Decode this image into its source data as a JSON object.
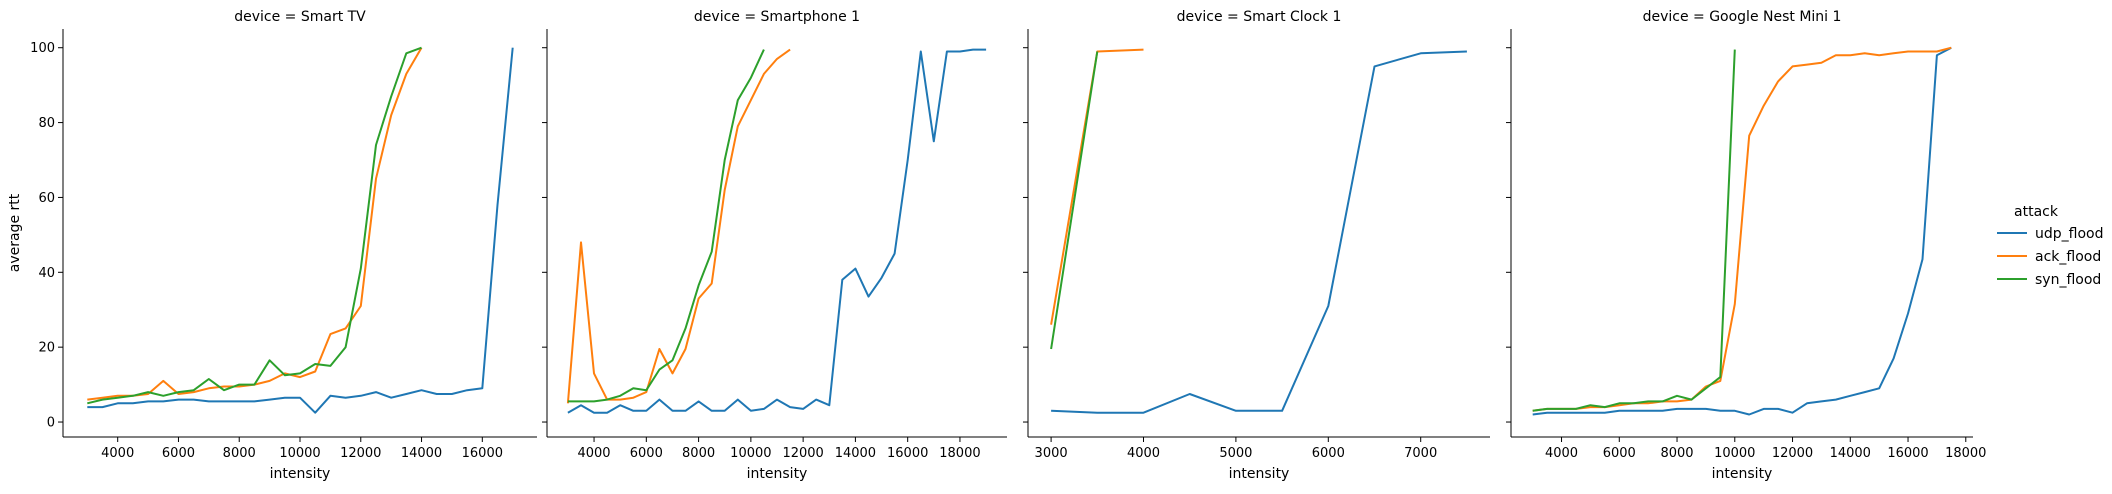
{
  "chart_data": {
    "type": "line",
    "ylabel": "average rtt",
    "xlabel": "intensity",
    "ylim": [
      -4,
      105
    ],
    "yticks": [
      0,
      20,
      40,
      60,
      80,
      100
    ],
    "legend": {
      "title": "attack",
      "placement": "right",
      "entries": [
        "udp_flood",
        "ack_flood",
        "syn_flood"
      ]
    },
    "colors": {
      "udp_flood": "#1f77b4",
      "ack_flood": "#ff7f0e",
      "syn_flood": "#2ca02c"
    },
    "panels": [
      {
        "title": "device = Smart TV",
        "xlim": [
          2200,
          17800
        ],
        "xticks": [
          4000,
          6000,
          8000,
          10000,
          12000,
          14000,
          16000
        ],
        "series": [
          {
            "name": "udp_flood",
            "x": [
              3000,
              3500,
              4000,
              4500,
              5000,
              5500,
              6000,
              6500,
              7000,
              7500,
              8000,
              8500,
              9000,
              9500,
              10000,
              10500,
              11000,
              11500,
              12000,
              12500,
              13000,
              13500,
              14000,
              14500,
              15000,
              15500,
              16000,
              16500,
              17000
            ],
            "y": [
              4,
              4,
              5,
              5,
              5.5,
              5.5,
              6,
              6,
              5.5,
              5.5,
              5.5,
              5.5,
              6,
              6.5,
              6.5,
              2.5,
              7,
              6.5,
              7,
              8,
              6.5,
              7.5,
              8.5,
              7.5,
              7.5,
              8.5,
              9,
              58,
              100
            ]
          },
          {
            "name": "ack_flood",
            "x": [
              3000,
              3500,
              4000,
              4500,
              5000,
              5500,
              6000,
              6500,
              7000,
              7500,
              8000,
              8500,
              9000,
              9500,
              10000,
              10500,
              11000,
              11500,
              12000,
              12500,
              13000,
              13500,
              14000
            ],
            "y": [
              6,
              6.5,
              7,
              7,
              7.5,
              11,
              7.5,
              8,
              9,
              9.5,
              9.5,
              10,
              11,
              13,
              12,
              13.5,
              23.5,
              25,
              31,
              65,
              82,
              93,
              100
            ]
          },
          {
            "name": "syn_flood",
            "x": [
              3000,
              3500,
              4000,
              4500,
              5000,
              5500,
              6000,
              6500,
              7000,
              7500,
              8000,
              8500,
              9000,
              9500,
              10000,
              10500,
              11000,
              11500,
              12000,
              12500,
              13000,
              13500,
              14000
            ],
            "y": [
              5,
              6,
              6.5,
              7,
              8,
              7,
              8,
              8.5,
              11.5,
              8.5,
              10,
              10,
              16.5,
              12.5,
              13,
              15.5,
              15,
              20,
              41,
              74,
              87,
              98.5,
              100
            ]
          }
        ]
      },
      {
        "title": "device = Smartphone 1",
        "xlim": [
          2200,
          19800
        ],
        "xticks": [
          4000,
          6000,
          8000,
          10000,
          12000,
          14000,
          16000,
          18000
        ],
        "series": [
          {
            "name": "udp_flood",
            "x": [
              3000,
              3500,
              4000,
              4500,
              5000,
              5500,
              6000,
              6500,
              7000,
              7500,
              8000,
              8500,
              9000,
              9500,
              10000,
              10500,
              11000,
              11500,
              12000,
              12500,
              13000,
              13500,
              14000,
              14500,
              15000,
              15500,
              16000,
              16500,
              17000,
              17500,
              18000,
              18500,
              19000
            ],
            "y": [
              2.5,
              4.5,
              2.5,
              2.5,
              4.5,
              3,
              3,
              6,
              3,
              3,
              5.5,
              3,
              3,
              6,
              3,
              3.5,
              6,
              4,
              3.5,
              6,
              4.5,
              38,
              41,
              33.5,
              38.5,
              45,
              70,
              99,
              75,
              99,
              99,
              99.5,
              99.5
            ]
          },
          {
            "name": "ack_flood",
            "x": [
              3000,
              3500,
              4000,
              4500,
              5000,
              5500,
              6000,
              6500,
              7000,
              7500,
              8000,
              8500,
              9000,
              9500,
              10000,
              10500,
              11000,
              11500
            ],
            "y": [
              5,
              48,
              13,
              6,
              6,
              6.5,
              8,
              19.5,
              13,
              19.5,
              33,
              37,
              62,
              79,
              86,
              93,
              97,
              99.5
            ]
          },
          {
            "name": "syn_flood",
            "x": [
              3000,
              3500,
              4000,
              4500,
              5000,
              5500,
              6000,
              6500,
              7000,
              7500,
              8000,
              8500,
              9000,
              9500,
              10000,
              10500
            ],
            "y": [
              5.5,
              5.5,
              5.5,
              6,
              7,
              9,
              8.5,
              14,
              16.5,
              25,
              36.5,
              45.5,
              70,
              86,
              92,
              99.5
            ]
          }
        ]
      },
      {
        "title": "device = Smart Clock 1",
        "xlim": [
          2750,
          7750
        ],
        "xticks": [
          3000,
          4000,
          5000,
          6000,
          7000
        ],
        "series": [
          {
            "name": "udp_flood",
            "x": [
              3000,
              3500,
              4000,
              4500,
              5000,
              5500,
              6000,
              6500,
              7000,
              7500
            ],
            "y": [
              3,
              2.5,
              2.5,
              7.5,
              3,
              3,
              31,
              95,
              98.5,
              99
            ]
          },
          {
            "name": "ack_flood",
            "x": [
              3000,
              3500,
              4000
            ],
            "y": [
              26,
              99,
              99.5
            ]
          },
          {
            "name": "syn_flood",
            "x": [
              3000,
              3500
            ],
            "y": [
              19.5,
              99
            ]
          }
        ]
      },
      {
        "title": "device = Google Nest Mini 1",
        "xlim": [
          2250,
          18250
        ],
        "xticks": [
          4000,
          6000,
          8000,
          10000,
          12000,
          14000,
          16000,
          18000
        ],
        "series": [
          {
            "name": "udp_flood",
            "x": [
              3000,
              3500,
              4000,
              4500,
              5000,
              5500,
              6000,
              6500,
              7000,
              7500,
              8000,
              8500,
              9000,
              9500,
              10000,
              10500,
              11000,
              11500,
              12000,
              12500,
              13000,
              13500,
              14000,
              14500,
              15000,
              15500,
              16000,
              16500,
              17000,
              17500
            ],
            "y": [
              2,
              2.5,
              2.5,
              2.5,
              2.5,
              2.5,
              3,
              3,
              3,
              3,
              3.5,
              3.5,
              3.5,
              3,
              3,
              2,
              3.5,
              3.5,
              2.5,
              5,
              5.5,
              6,
              7,
              8,
              9,
              17,
              29,
              43.5,
              98,
              100
            ]
          },
          {
            "name": "ack_flood",
            "x": [
              3000,
              3500,
              4000,
              4500,
              5000,
              5500,
              6000,
              6500,
              7000,
              7500,
              8000,
              8500,
              9000,
              9500,
              10000,
              10500,
              11000,
              11500,
              12000,
              12500,
              13000,
              13500,
              14000,
              14500,
              15000,
              15500,
              16000,
              16500,
              17000,
              17500
            ],
            "y": [
              3,
              3.5,
              3.5,
              3.5,
              4,
              4,
              4.5,
              5,
              5,
              5.5,
              5.5,
              6,
              9.5,
              11,
              31.5,
              76.5,
              84.5,
              91,
              95,
              95.5,
              96,
              98,
              98,
              98.5,
              98,
              98.5,
              99,
              99,
              99,
              100
            ]
          },
          {
            "name": "syn_flood",
            "x": [
              3000,
              3500,
              4000,
              4500,
              5000,
              5500,
              6000,
              6500,
              7000,
              7500,
              8000,
              8500,
              9000,
              9500,
              10000
            ],
            "y": [
              3,
              3.5,
              3.5,
              3.5,
              4.5,
              4,
              5,
              5,
              5.5,
              5.5,
              7,
              6,
              9,
              12,
              99.5
            ]
          }
        ]
      }
    ]
  }
}
